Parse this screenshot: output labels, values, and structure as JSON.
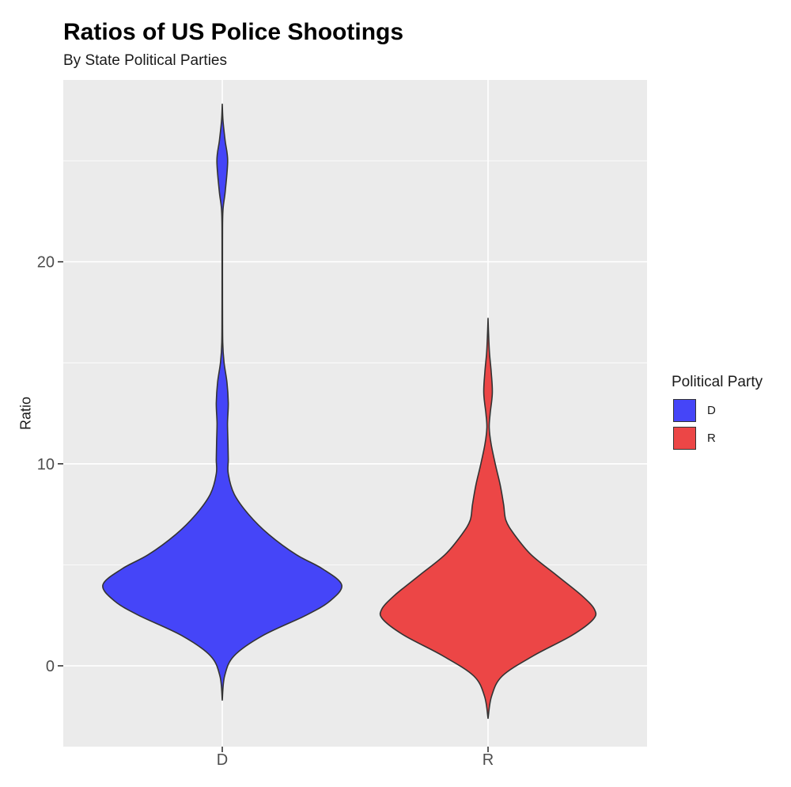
{
  "chart_data": {
    "type": "violin",
    "title": "Ratios of US Police Shootings",
    "subtitle": "By State Political Parties",
    "xlabel": "",
    "ylabel": "Ratio",
    "categories": [
      "D",
      "R"
    ],
    "ylim": [
      -4,
      29
    ],
    "yticks": [
      0,
      10,
      20
    ],
    "grid": true,
    "legend": {
      "title": "Political Party",
      "position": "right",
      "entries": [
        {
          "label": "D",
          "color": "#4545f8"
        },
        {
          "label": "R",
          "color": "#ec4646"
        }
      ]
    },
    "series": [
      {
        "name": "D",
        "color": "#4545f8",
        "range": [
          -1.7,
          27.8
        ],
        "density_profile": [
          {
            "y": -1.7,
            "w": 0.0
          },
          {
            "y": -0.5,
            "w": 0.02
          },
          {
            "y": 0.5,
            "w": 0.1
          },
          {
            "y": 1.5,
            "w": 0.34
          },
          {
            "y": 2.5,
            "w": 0.7
          },
          {
            "y": 3.2,
            "w": 0.9
          },
          {
            "y": 4.0,
            "w": 1.0
          },
          {
            "y": 4.8,
            "w": 0.84
          },
          {
            "y": 5.5,
            "w": 0.62
          },
          {
            "y": 6.5,
            "w": 0.39
          },
          {
            "y": 7.5,
            "w": 0.22
          },
          {
            "y": 8.5,
            "w": 0.1
          },
          {
            "y": 9.5,
            "w": 0.05
          },
          {
            "y": 10.2,
            "w": 0.05
          },
          {
            "y": 11.0,
            "w": 0.048
          },
          {
            "y": 12.0,
            "w": 0.044
          },
          {
            "y": 13.0,
            "w": 0.05
          },
          {
            "y": 14.0,
            "w": 0.04
          },
          {
            "y": 15.0,
            "w": 0.015
          },
          {
            "y": 16.0,
            "w": 0.004
          },
          {
            "y": 18.0,
            "w": 0.002
          },
          {
            "y": 21.0,
            "w": 0.002
          },
          {
            "y": 22.5,
            "w": 0.005
          },
          {
            "y": 23.5,
            "w": 0.025
          },
          {
            "y": 25.0,
            "w": 0.045
          },
          {
            "y": 26.0,
            "w": 0.024
          },
          {
            "y": 27.0,
            "w": 0.006
          },
          {
            "y": 27.8,
            "w": 0.0
          }
        ]
      },
      {
        "name": "R",
        "color": "#ec4646",
        "range": [
          -2.6,
          17.2
        ],
        "density_profile": [
          {
            "y": -2.6,
            "w": 0.0
          },
          {
            "y": -1.5,
            "w": 0.03
          },
          {
            "y": -0.5,
            "w": 0.12
          },
          {
            "y": 0.5,
            "w": 0.38
          },
          {
            "y": 1.5,
            "w": 0.7
          },
          {
            "y": 2.3,
            "w": 0.88
          },
          {
            "y": 2.8,
            "w": 0.89
          },
          {
            "y": 3.5,
            "w": 0.78
          },
          {
            "y": 4.5,
            "w": 0.57
          },
          {
            "y": 5.5,
            "w": 0.36
          },
          {
            "y": 6.5,
            "w": 0.22
          },
          {
            "y": 7.2,
            "w": 0.15
          },
          {
            "y": 8.0,
            "w": 0.13
          },
          {
            "y": 9.0,
            "w": 0.1
          },
          {
            "y": 10.0,
            "w": 0.06
          },
          {
            "y": 11.0,
            "w": 0.025
          },
          {
            "y": 11.8,
            "w": 0.01
          },
          {
            "y": 12.5,
            "w": 0.018
          },
          {
            "y": 13.5,
            "w": 0.036
          },
          {
            "y": 14.5,
            "w": 0.027
          },
          {
            "y": 15.5,
            "w": 0.012
          },
          {
            "y": 16.5,
            "w": 0.004
          },
          {
            "y": 17.2,
            "w": 0.0
          }
        ]
      }
    ]
  }
}
